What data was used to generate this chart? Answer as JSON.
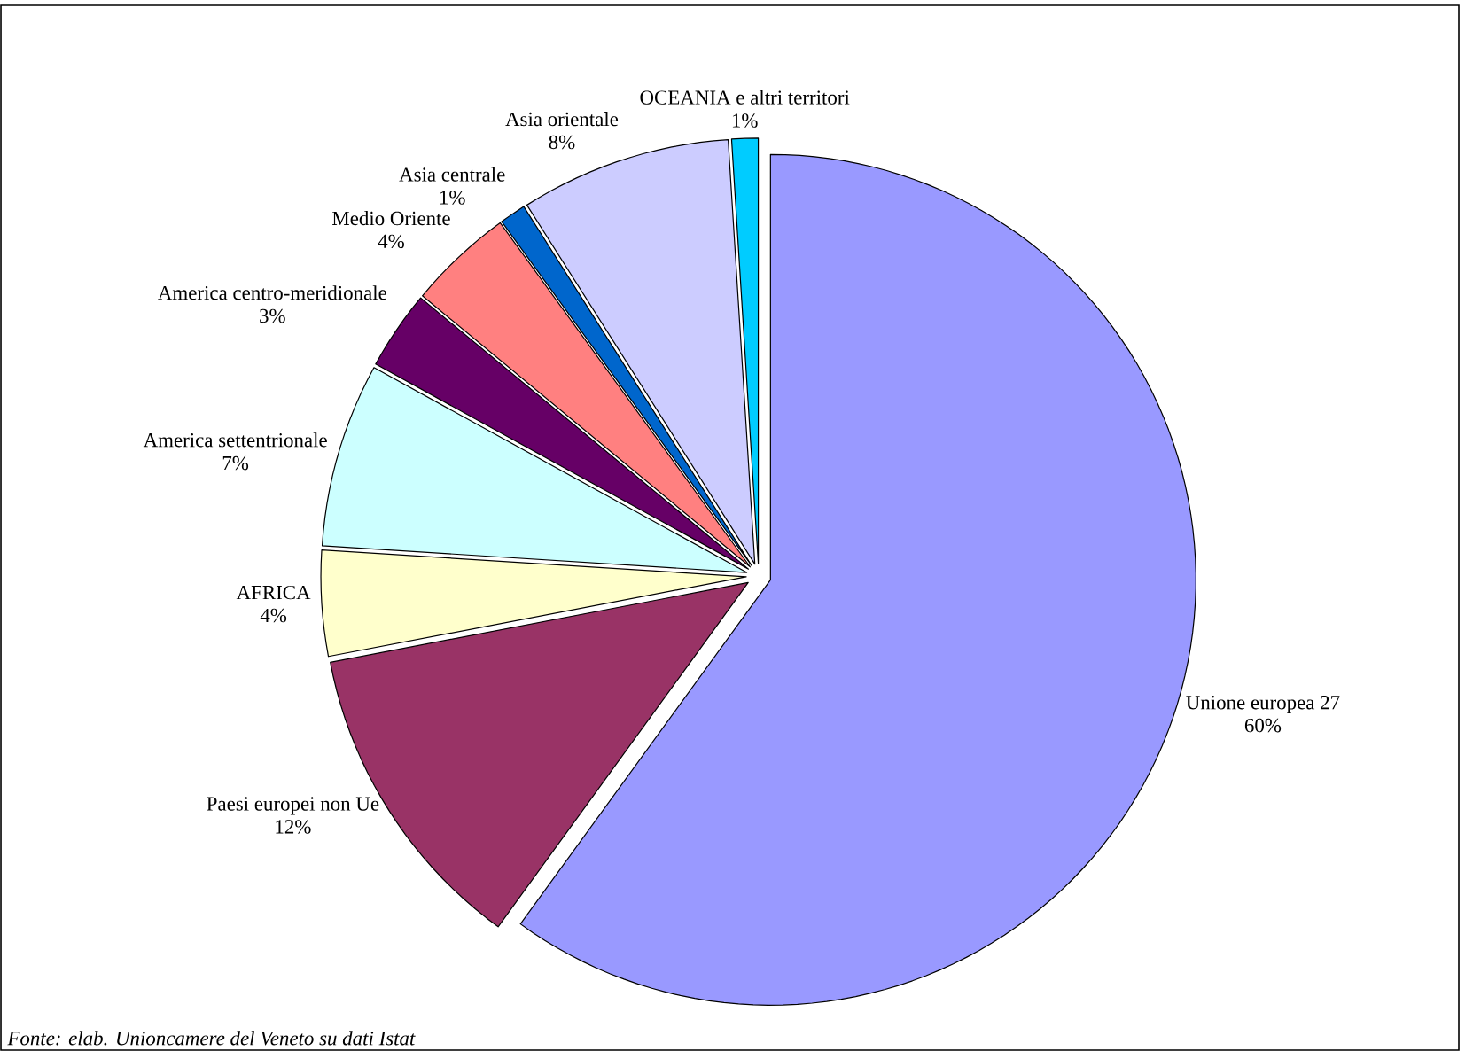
{
  "chart_data": {
    "type": "pie",
    "categories": [
      "Unione europea 27",
      "Paesi europei non Ue",
      "AFRICA",
      "America settentrionale",
      "America centro-meridionale",
      "Medio Oriente",
      "Asia centrale",
      "Asia orientale",
      "OCEANIA e altri territori"
    ],
    "values": [
      60,
      12,
      4,
      7,
      3,
      4,
      1,
      8,
      1
    ],
    "value_labels": [
      "60%",
      "12%",
      "4%",
      "7%",
      "3%",
      "4%",
      "1%",
      "8%",
      "1%"
    ],
    "colors": [
      "#9999ff",
      "#993366",
      "#ffffcc",
      "#ccffff",
      "#660066",
      "#ff8080",
      "#0066cc",
      "#ccccff",
      "#00ccff"
    ],
    "annotations": [
      "Fonte: elab. Unioncamere del Veneto su dati Istat"
    ]
  }
}
